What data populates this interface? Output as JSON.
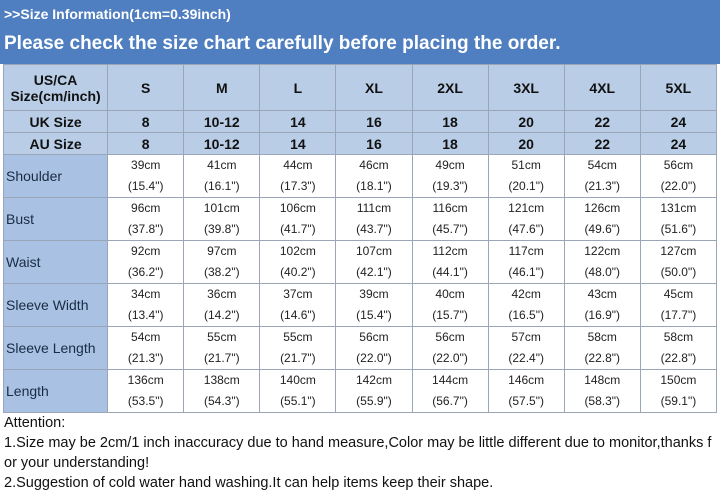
{
  "header": {
    "subtitle": ">>Size Information(1cm=0.39inch)",
    "title": "Please check the size chart carefully before placing the order."
  },
  "table": {
    "corner": "US/CA Size(cm/inch)",
    "sizes": [
      "S",
      "M",
      "L",
      "XL",
      "2XL",
      "3XL",
      "4XL",
      "5XL"
    ],
    "alt_rows": [
      {
        "label": "UK Size",
        "values": [
          "8",
          "10-12",
          "14",
          "16",
          "18",
          "20",
          "22",
          "24"
        ]
      },
      {
        "label": "AU Size",
        "values": [
          "8",
          "10-12",
          "14",
          "16",
          "18",
          "20",
          "22",
          "24"
        ]
      }
    ],
    "rows": [
      {
        "label": "Shoulder",
        "cells": [
          [
            "39cm",
            "(15.4\")"
          ],
          [
            "41cm",
            "(16.1\")"
          ],
          [
            "44cm",
            "(17.3\")"
          ],
          [
            "46cm",
            "(18.1\")"
          ],
          [
            "49cm",
            "(19.3\")"
          ],
          [
            "51cm",
            "(20.1\")"
          ],
          [
            "54cm",
            "(21.3\")"
          ],
          [
            "56cm",
            "(22.0\")"
          ]
        ]
      },
      {
        "label": "Bust",
        "cells": [
          [
            "96cm",
            "(37.8\")"
          ],
          [
            "101cm",
            "(39.8\")"
          ],
          [
            "106cm",
            "(41.7\")"
          ],
          [
            "111cm",
            "(43.7\")"
          ],
          [
            "116cm",
            "(45.7\")"
          ],
          [
            "121cm",
            "(47.6\")"
          ],
          [
            "126cm",
            "(49.6\")"
          ],
          [
            "131cm",
            "(51.6\")"
          ]
        ]
      },
      {
        "label": "Waist",
        "cells": [
          [
            "92cm",
            "(36.2\")"
          ],
          [
            "97cm",
            "(38.2\")"
          ],
          [
            "102cm",
            "(40.2\")"
          ],
          [
            "107cm",
            "(42.1\")"
          ],
          [
            "112cm",
            "(44.1\")"
          ],
          [
            "117cm",
            "(46.1\")"
          ],
          [
            "122cm",
            "(48.0\")"
          ],
          [
            "127cm",
            "(50.0\")"
          ]
        ]
      },
      {
        "label": "Sleeve Width",
        "cells": [
          [
            "34cm",
            "(13.4\")"
          ],
          [
            "36cm",
            "(14.2\")"
          ],
          [
            "37cm",
            "(14.6\")"
          ],
          [
            "39cm",
            "(15.4\")"
          ],
          [
            "40cm",
            "(15.7\")"
          ],
          [
            "42cm",
            "(16.5\")"
          ],
          [
            "43cm",
            "(16.9\")"
          ],
          [
            "45cm",
            "(17.7\")"
          ]
        ]
      },
      {
        "label": "Sleeve Length",
        "cells": [
          [
            "54cm",
            "(21.3\")"
          ],
          [
            "55cm",
            "(21.7\")"
          ],
          [
            "55cm",
            "(21.7\")"
          ],
          [
            "56cm",
            "(22.0\")"
          ],
          [
            "56cm",
            "(22.0\")"
          ],
          [
            "57cm",
            "(22.4\")"
          ],
          [
            "58cm",
            "(22.8\")"
          ],
          [
            "58cm",
            "(22.8\")"
          ]
        ]
      },
      {
        "label": "Length",
        "cells": [
          [
            "136cm",
            "(53.5\")"
          ],
          [
            "138cm",
            "(54.3\")"
          ],
          [
            "140cm",
            "(55.1\")"
          ],
          [
            "142cm",
            "(55.9\")"
          ],
          [
            "144cm",
            "(56.7\")"
          ],
          [
            "146cm",
            "(57.5\")"
          ],
          [
            "148cm",
            "(58.3\")"
          ],
          [
            "150cm",
            "(59.1\")"
          ]
        ]
      }
    ]
  },
  "notes": [
    "Attention:",
    "1.Size may be 2cm/1 inch inaccuracy due to hand measure,Color may be little different due to monitor,thanks for your understanding!",
    "2.Suggestion of cold water hand washing.It can help items keep their shape."
  ]
}
